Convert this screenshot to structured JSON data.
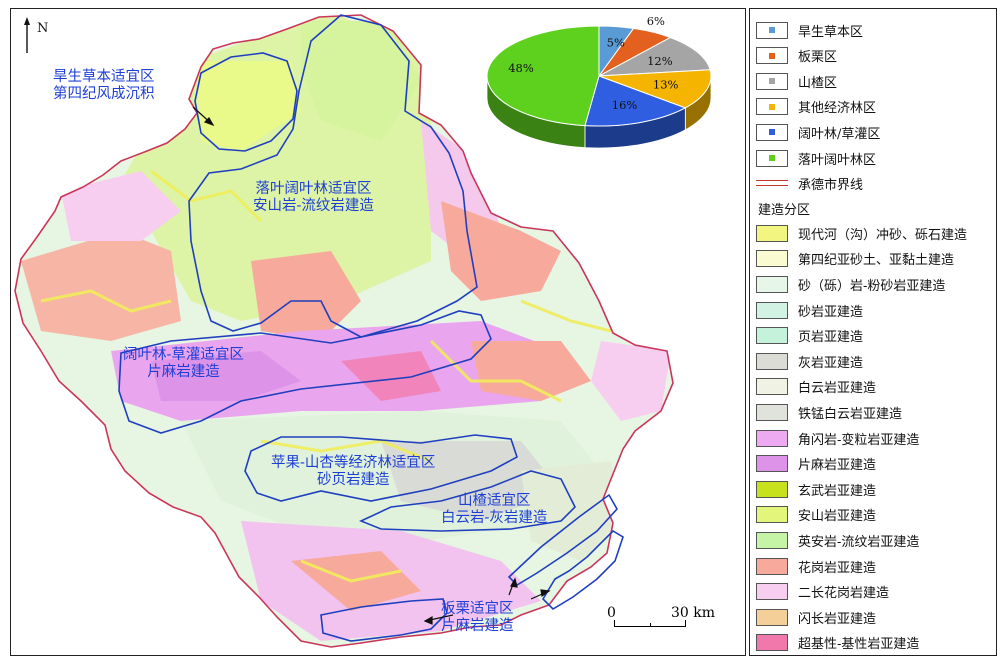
{
  "north_label": "N",
  "scale": {
    "zero": "0",
    "end": "30 km"
  },
  "zones": [
    {
      "id": "drought-grass",
      "line1": "旱生草本适宜区",
      "line2": "第四纪风成沉积"
    },
    {
      "id": "deciduous",
      "line1": "落叶阔叶林适宜区",
      "line2": "安山岩-流纹岩建造"
    },
    {
      "id": "broadleaf-shrub",
      "line1": "阔叶林-草灌适宜区",
      "line2": "片麻岩建造"
    },
    {
      "id": "apple-apricot",
      "line1": "苹果-山杏等经济林适宜区",
      "line2": "砂页岩建造"
    },
    {
      "id": "hawthorn",
      "line1": "山楂适宜区",
      "line2": "白云岩-灰岩建造"
    },
    {
      "id": "chestnut",
      "line1": "板栗适宜区",
      "line2": "片麻岩建造"
    }
  ],
  "chart_data": {
    "type": "pie",
    "style": "3d",
    "slices": [
      {
        "label": "旱生草本区",
        "value": 5,
        "text": "5%",
        "color": "#5b9bd5"
      },
      {
        "label": "板栗区",
        "value": 6,
        "text": "6%",
        "color": "#e3601f"
      },
      {
        "label": "山楂区",
        "value": 12,
        "text": "12%",
        "color": "#a5a5a5"
      },
      {
        "label": "其他经济林区",
        "value": 13,
        "text": "13%",
        "color": "#f4b400"
      },
      {
        "label": "阔叶林/草灌区",
        "value": 16,
        "text": "16%",
        "color": "#2f5fe0"
      },
      {
        "label": "落叶阔叶林区",
        "value": 48,
        "text": "48%",
        "color": "#5ed11f"
      }
    ]
  },
  "legend": {
    "pie_items": [
      {
        "label": "旱生草本区",
        "color": "#5b9bd5"
      },
      {
        "label": "板栗区",
        "color": "#e3601f"
      },
      {
        "label": "山楂区",
        "color": "#a5a5a5"
      },
      {
        "label": "其他经济林区",
        "color": "#f4b400"
      },
      {
        "label": "阔叶林/草灌区",
        "color": "#2f5fe0"
      },
      {
        "label": "落叶阔叶林区",
        "color": "#5ed11f"
      }
    ],
    "boundary_label": "承德市界线",
    "section_title": "建造分区",
    "formations": [
      {
        "label": "现代河（沟）冲砂、砾石建造",
        "color": "#f2f57f"
      },
      {
        "label": "第四纪亚砂土、亚黏土建造",
        "color": "#fbfbd2"
      },
      {
        "label": "砂（砾）岩-粉砂岩亚建造",
        "color": "#e6f6e8"
      },
      {
        "label": "砂岩亚建造",
        "color": "#d2f3e4"
      },
      {
        "label": "页岩亚建造",
        "color": "#c4f2db"
      },
      {
        "label": "灰岩亚建造",
        "color": "#dcdcd6"
      },
      {
        "label": "白云岩亚建造",
        "color": "#f0f2e4"
      },
      {
        "label": "铁锰白云岩亚建造",
        "color": "#dfe3dc"
      },
      {
        "label": "角闪岩-变粒岩亚建造",
        "color": "#eeaaf0"
      },
      {
        "label": "片麻岩亚建造",
        "color": "#dd93e8"
      },
      {
        "label": "玄武岩亚建造",
        "color": "#c7e11d"
      },
      {
        "label": "安山岩亚建造",
        "color": "#e3f57a"
      },
      {
        "label": "英安岩-流纹岩亚建造",
        "color": "#c6f4a6"
      },
      {
        "label": "花岗岩亚建造",
        "color": "#f7a99b"
      },
      {
        "label": "二长花岗岩建造",
        "color": "#f7cdf0"
      },
      {
        "label": "闪长岩亚建造",
        "color": "#f4cf98"
      },
      {
        "label": "超基性-基性岩亚建造",
        "color": "#f178aa"
      }
    ]
  }
}
